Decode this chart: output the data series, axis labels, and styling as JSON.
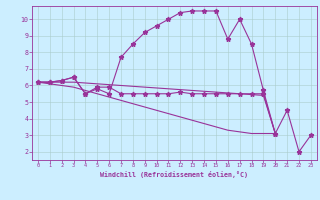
{
  "xlabel": "Windchill (Refroidissement éolien,°C)",
  "xlim": [
    -0.5,
    23.5
  ],
  "ylim": [
    1.5,
    10.8
  ],
  "xticks": [
    0,
    1,
    2,
    3,
    4,
    5,
    6,
    7,
    8,
    9,
    10,
    11,
    12,
    13,
    14,
    15,
    16,
    17,
    18,
    19,
    20,
    21,
    22,
    23
  ],
  "yticks": [
    2,
    3,
    4,
    5,
    6,
    7,
    8,
    9,
    10
  ],
  "background_color": "#cceeff",
  "line_color": "#993399",
  "grid_color": "#aacccc",
  "line1_x": [
    0,
    1,
    2,
    3,
    4,
    5,
    6,
    7,
    8,
    9,
    10,
    11,
    12,
    13,
    14,
    15,
    16,
    17,
    18,
    19,
    20,
    21,
    22,
    23
  ],
  "line1_y": [
    6.2,
    6.2,
    6.3,
    6.5,
    5.5,
    5.9,
    5.9,
    5.5,
    5.5,
    5.5,
    5.5,
    5.5,
    5.6,
    5.5,
    5.5,
    5.5,
    5.5,
    5.5,
    5.5,
    5.5,
    3.1,
    4.5,
    2.0,
    3.0
  ],
  "line1_marker": true,
  "line2_x": [
    0,
    1,
    2,
    3,
    4,
    5,
    6,
    7,
    8,
    9,
    10,
    11,
    12,
    13,
    14,
    15,
    16,
    17,
    18,
    19,
    20
  ],
  "line2_y": [
    6.2,
    6.2,
    6.3,
    6.5,
    5.5,
    5.8,
    5.5,
    7.7,
    8.5,
    9.2,
    9.6,
    10.0,
    10.4,
    10.5,
    10.5,
    10.5,
    8.8,
    10.0,
    8.5,
    5.7,
    3.1
  ],
  "line2_marker": true,
  "line3_x": [
    0,
    1,
    2,
    3,
    4,
    5,
    6,
    7,
    8,
    9,
    10,
    11,
    12,
    13,
    14,
    15,
    16,
    17,
    18,
    19,
    20
  ],
  "line3_y": [
    6.2,
    6.2,
    6.2,
    6.2,
    6.15,
    6.1,
    6.05,
    6.0,
    5.95,
    5.9,
    5.85,
    5.8,
    5.75,
    5.7,
    5.65,
    5.6,
    5.55,
    5.5,
    5.45,
    5.4,
    3.1
  ],
  "line3_marker": false,
  "line4_x": [
    0,
    1,
    2,
    3,
    4,
    5,
    6,
    7,
    8,
    9,
    10,
    11,
    12,
    13,
    14,
    15,
    16,
    17,
    18,
    19,
    20
  ],
  "line4_y": [
    6.2,
    6.1,
    6.0,
    5.9,
    5.7,
    5.5,
    5.3,
    5.1,
    4.9,
    4.7,
    4.5,
    4.3,
    4.1,
    3.9,
    3.7,
    3.5,
    3.3,
    3.2,
    3.1,
    3.1,
    3.1
  ],
  "line4_marker": false
}
